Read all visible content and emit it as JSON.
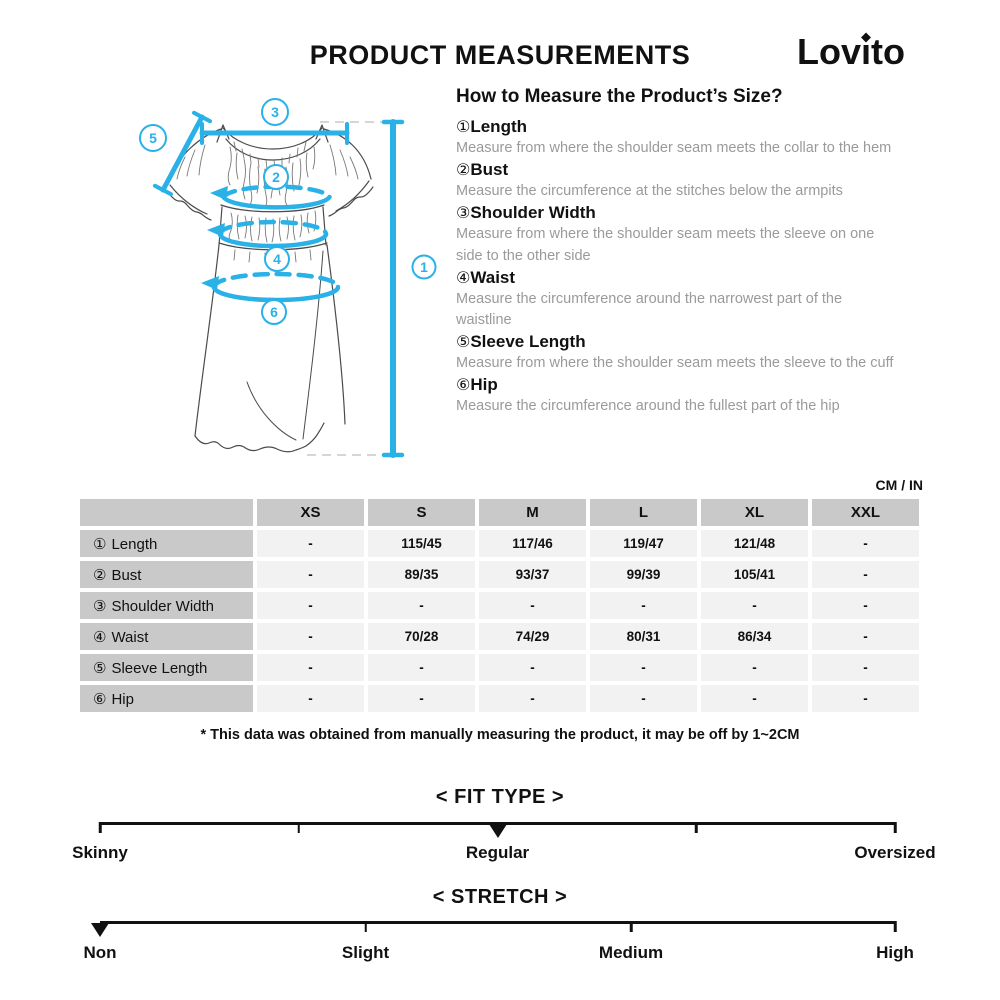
{
  "page": {
    "title": "PRODUCT MEASUREMENTS"
  },
  "brand": {
    "start": "Lov",
    "i": "ı",
    "end": "to",
    "name": "Lovito"
  },
  "colors": {
    "accent": "#29b1e8",
    "table_head_bg": "#c9c9c9",
    "table_cell_bg": "#f2f2f2",
    "desc_text": "#9a9a9a"
  },
  "howto": {
    "title": "How to Measure the Product’s Size?",
    "items": [
      {
        "num": "①",
        "name": "Length",
        "desc": "Measure from where the shoulder seam meets the collar to the hem"
      },
      {
        "num": "②",
        "name": "Bust",
        "desc": "Measure the circumference at the stitches below the armpits"
      },
      {
        "num": "③",
        "name": "Shoulder Width",
        "desc": "Measure from where the shoulder seam meets the sleeve on one side to the other side"
      },
      {
        "num": "④",
        "name": "Waist",
        "desc": "Measure the circumference around the narrowest part of the waistline"
      },
      {
        "num": "⑤",
        "name": "Sleeve Length",
        "desc": "Measure from where the shoulder seam meets the sleeve to the cuff"
      },
      {
        "num": "⑥",
        "name": "Hip",
        "desc": "Measure the circumference around the fullest part of the hip"
      }
    ]
  },
  "diagram": {
    "markers": [
      "1",
      "2",
      "3",
      "4",
      "5",
      "6"
    ]
  },
  "table": {
    "unit": "CM / IN",
    "columns": [
      "XS",
      "S",
      "M",
      "L",
      "XL",
      "XXL"
    ],
    "rows": [
      {
        "num": "①",
        "label": "Length",
        "values": [
          "-",
          "115/45",
          "117/46",
          "119/47",
          "121/48",
          "-"
        ]
      },
      {
        "num": "②",
        "label": "Bust",
        "values": [
          "-",
          "89/35",
          "93/37",
          "99/39",
          "105/41",
          "-"
        ]
      },
      {
        "num": "③",
        "label": "Shoulder Width",
        "values": [
          "-",
          "-",
          "-",
          "-",
          "-",
          "-"
        ]
      },
      {
        "num": "④",
        "label": "Waist",
        "values": [
          "-",
          "70/28",
          "74/29",
          "80/31",
          "86/34",
          "-"
        ]
      },
      {
        "num": "⑤",
        "label": "Sleeve Length",
        "values": [
          "-",
          "-",
          "-",
          "-",
          "-",
          "-"
        ]
      },
      {
        "num": "⑥",
        "label": "Hip",
        "values": [
          "-",
          "-",
          "-",
          "-",
          "-",
          "-"
        ]
      }
    ],
    "footnote": "* This data was obtained from manually measuring the product, it may be off by 1~2CM"
  },
  "scales": [
    {
      "title": "< FIT TYPE >",
      "labels": [
        "Skinny",
        "Regular",
        "Oversized"
      ],
      "selected": "Regular",
      "marker_percent": 50
    },
    {
      "title": "< STRETCH >",
      "labels": [
        "Non",
        "Slight",
        "Medium",
        "High"
      ],
      "selected": "Non",
      "marker_percent": 0
    }
  ]
}
